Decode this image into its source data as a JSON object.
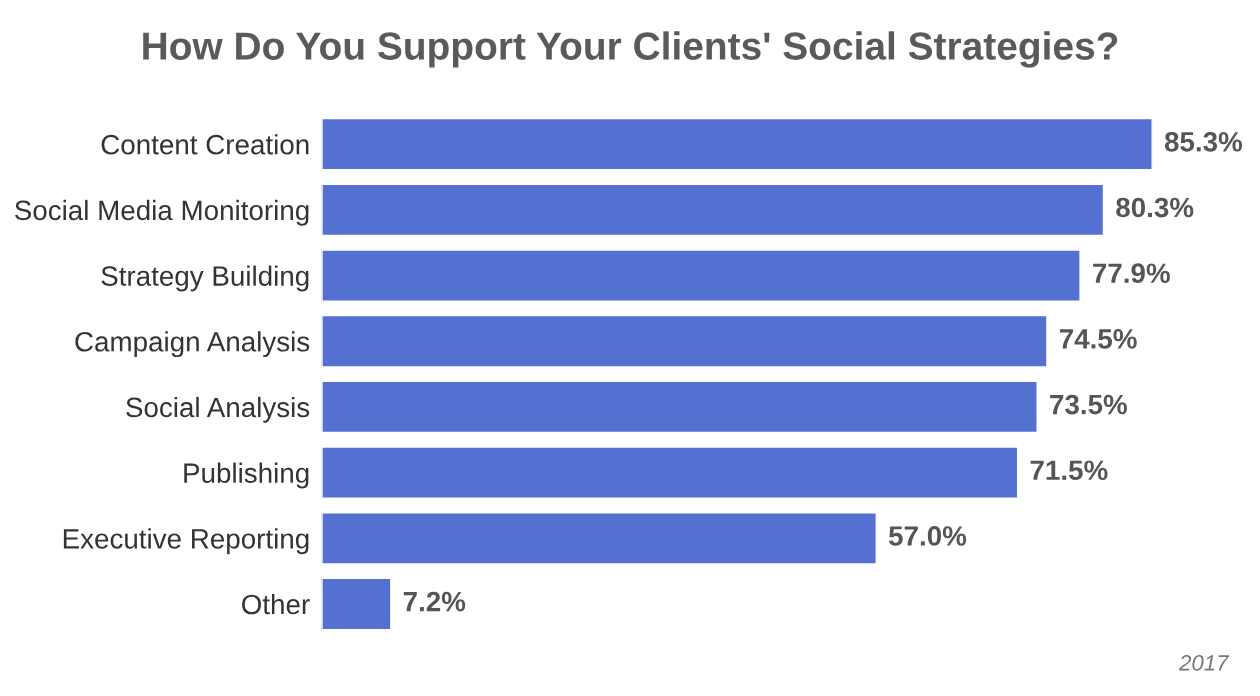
{
  "chart_data": {
    "type": "bar",
    "orientation": "horizontal",
    "title": "How Do You Support Your Clients' Social Strategies?",
    "categories": [
      "Content Creation",
      "Social Media Monitoring",
      "Strategy Building",
      "Campaign Analysis",
      "Social Analysis",
      "Publishing",
      "Executive Reporting",
      "Other"
    ],
    "values": [
      85.3,
      80.3,
      77.9,
      74.5,
      73.5,
      71.5,
      57.0,
      7.2
    ],
    "value_labels": [
      "85.3%",
      "80.3%",
      "77.9%",
      "74.5%",
      "73.5%",
      "71.5%",
      "57.0%",
      "7.2%"
    ],
    "color": "#5470d0",
    "grid": false,
    "legend": false,
    "annotations": [
      "2017"
    ]
  }
}
